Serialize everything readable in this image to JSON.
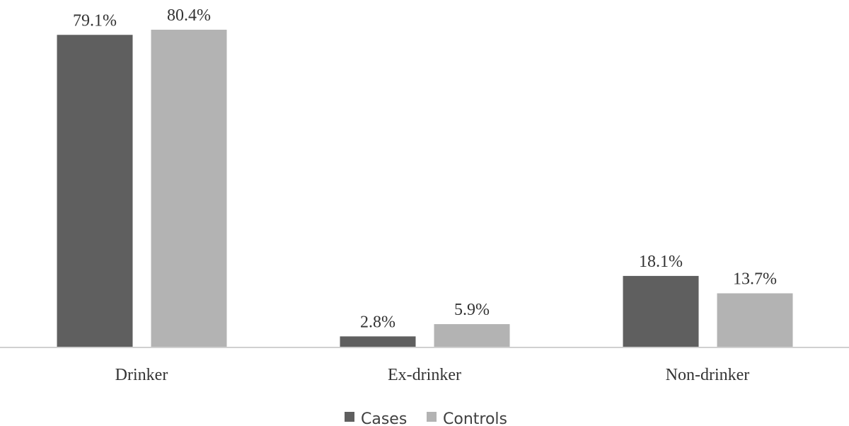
{
  "chart_data": {
    "type": "bar",
    "categories": [
      "Drinker",
      "Ex-drinker",
      "Non-drinker"
    ],
    "series": [
      {
        "name": "Cases",
        "values": [
          79.1,
          2.8,
          18.1
        ],
        "labels": [
          "79.1%",
          "2.8%",
          "18.1%"
        ],
        "color": "#5f5f5f"
      },
      {
        "name": "Controls",
        "values": [
          80.4,
          5.9,
          13.7
        ],
        "labels": [
          "80.4%",
          "5.9%",
          "13.7%"
        ],
        "color": "#b3b3b3"
      }
    ],
    "title": "",
    "xlabel": "",
    "ylabel": "",
    "ylim": [
      0,
      80.4
    ],
    "grid": false,
    "legend": "bottom",
    "axis_color": "#d0d0d0"
  }
}
